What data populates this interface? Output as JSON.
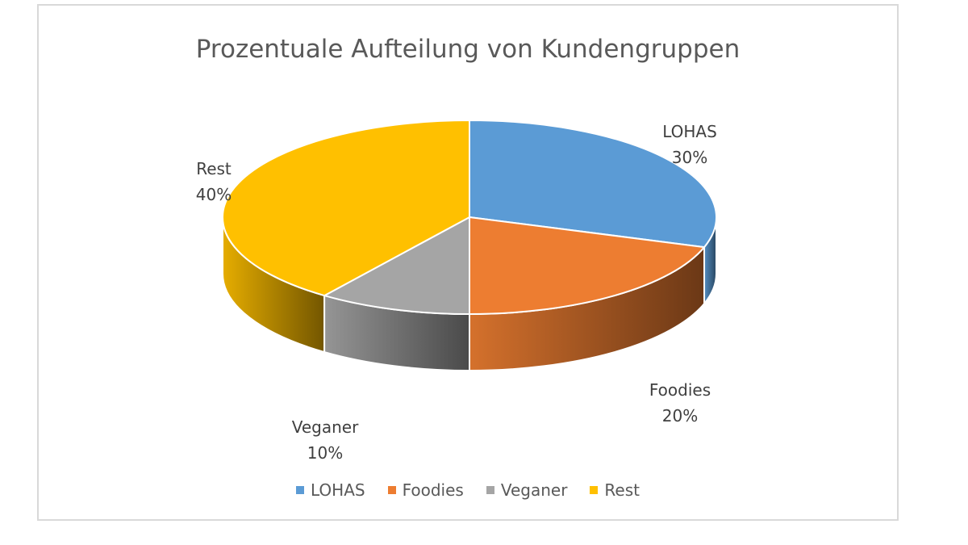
{
  "chart_data": {
    "type": "pie",
    "title": "Prozentuale Aufteilung von Kundengruppen",
    "categories": [
      "LOHAS",
      "Foodies",
      "Veganer",
      "Rest"
    ],
    "values": [
      30,
      20,
      10,
      40
    ],
    "value_labels": [
      "30%",
      "20%",
      "10%",
      "40%"
    ],
    "colors": [
      "#5b9bd5",
      "#ed7d31",
      "#a5a5a5",
      "#ffc000"
    ],
    "style": "3d",
    "legend_position": "bottom"
  }
}
